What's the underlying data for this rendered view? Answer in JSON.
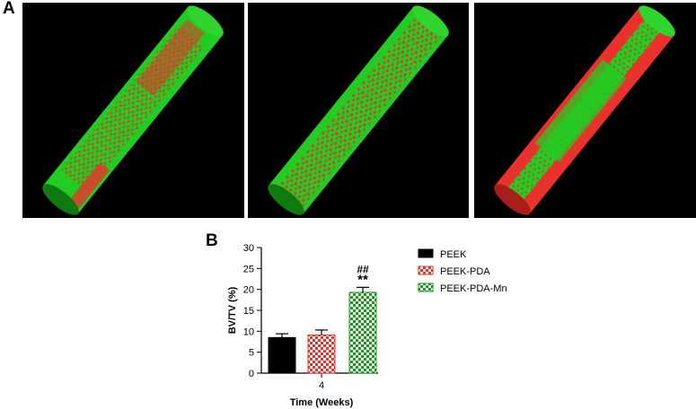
{
  "panel_labels": {
    "a": "A",
    "b": "B"
  },
  "ct_panels": [
    {
      "group": "PEEK"
    },
    {
      "group": "PEEK-PDA"
    },
    {
      "group": "PEEK-PDA-Mn"
    }
  ],
  "colors": {
    "green": "#22cc22",
    "red": "#e8322b",
    "background": "#000000"
  },
  "chart_data": {
    "type": "bar",
    "categories": [
      "4"
    ],
    "series": [
      {
        "name": "PEEK",
        "values": [
          8.5
        ],
        "errors": [
          0.9
        ],
        "color": "#000000",
        "pattern": "solid",
        "annotation": ""
      },
      {
        "name": "PEEK-PDA",
        "values": [
          9.1
        ],
        "errors": [
          1.2
        ],
        "color": "#e8322b",
        "pattern": "checker",
        "annotation": ""
      },
      {
        "name": "PEEK-PDA-Mn",
        "values": [
          19.3
        ],
        "errors": [
          1.2
        ],
        "color": "#1a9a1a",
        "pattern": "checker",
        "annotation": "##\n**"
      }
    ],
    "xlabel": "Time (Weeks)",
    "ylabel": "BV/TV (%)",
    "ylim": [
      0,
      30
    ],
    "yticks": [
      0,
      5,
      10,
      15,
      20,
      25,
      30
    ],
    "legend_position": "right",
    "grid": false
  }
}
